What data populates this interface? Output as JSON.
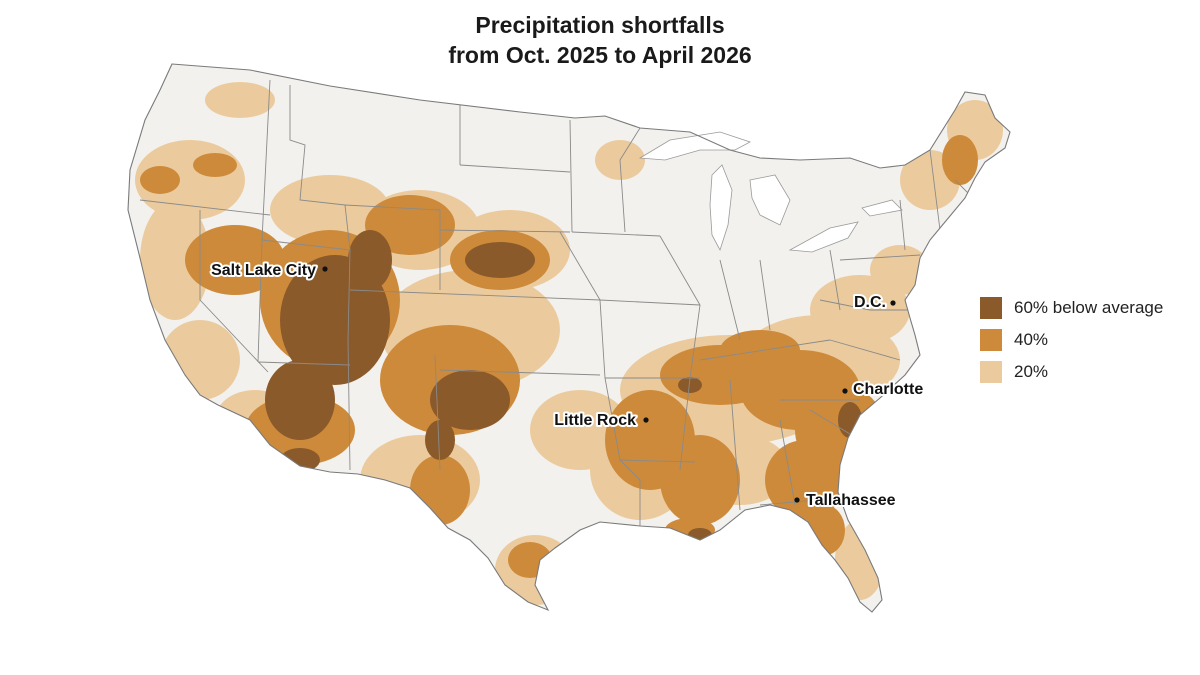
{
  "title": {
    "line1": "Precipitation shortfalls",
    "line2": "from Oct. 2025 to April 2026"
  },
  "legend": [
    {
      "label": "60% below average",
      "color": "#8b5a2b"
    },
    {
      "label": "40%",
      "color": "#cd8a3a"
    },
    {
      "label": "20%",
      "color": "#ebcb9d"
    }
  ],
  "cities": [
    {
      "name": "Salt Lake City"
    },
    {
      "name": "D.C."
    },
    {
      "name": "Charlotte"
    },
    {
      "name": "Little Rock"
    },
    {
      "name": "Tallahassee"
    }
  ],
  "colors": {
    "land": "#f2f1ee",
    "borders": "#8a8a8a",
    "water": "#ffffff"
  }
}
